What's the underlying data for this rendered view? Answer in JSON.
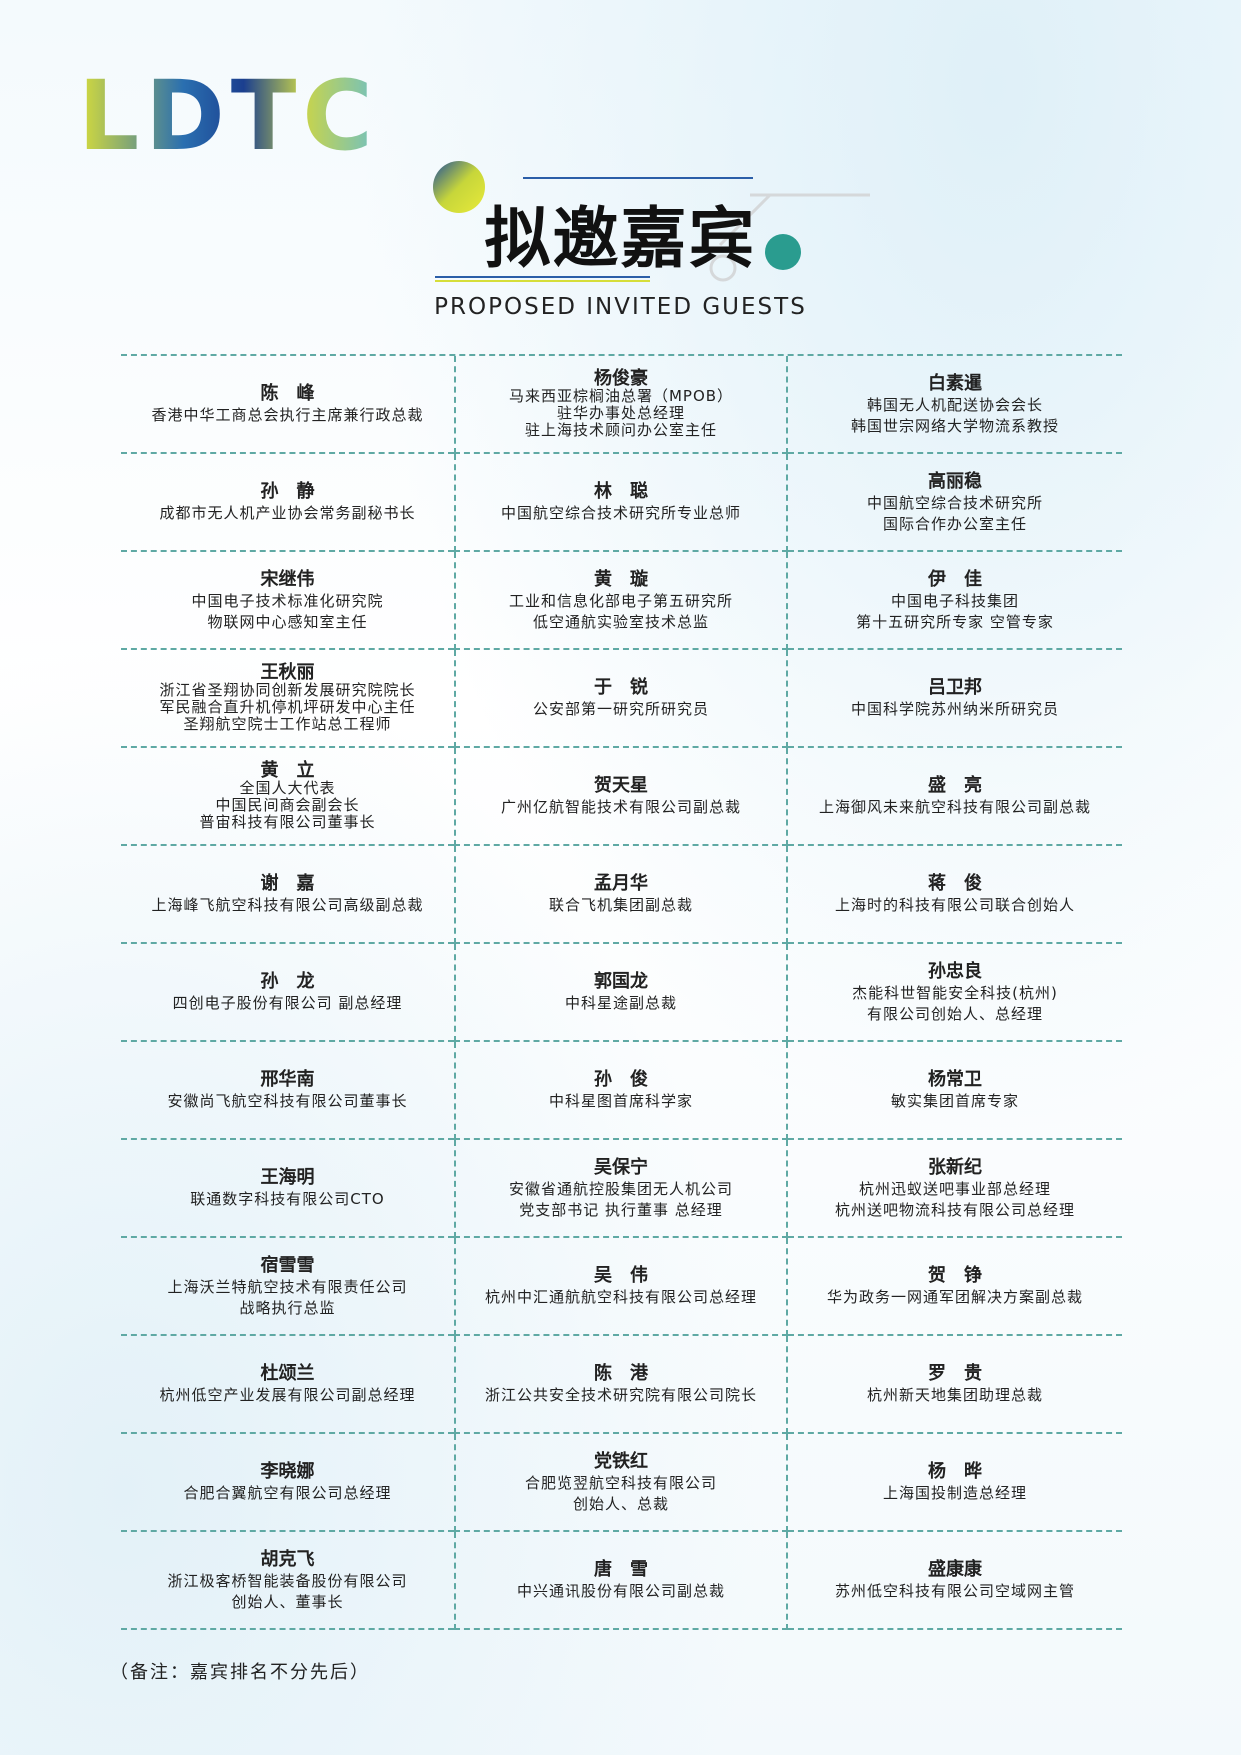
{
  "logo": "LDTC",
  "title": "拟邀嘉宾",
  "subtitle": "PROPOSED INVITED GUESTS",
  "guests": [
    [
      {
        "name": "陈　峰",
        "lines": [
          "香港中华工商总会执行主席兼行政总裁"
        ]
      },
      {
        "name": "杨俊豪",
        "lines": [
          "马来西亚棕榈油总署（MPOB）",
          "驻华办事处总经理",
          "驻上海技术顾问办公室主任"
        ]
      },
      {
        "name": "白素暹",
        "lines": [
          "韩国无人机配送协会会长",
          "韩国世宗网络大学物流系教授"
        ]
      }
    ],
    [
      {
        "name": "孙　静",
        "lines": [
          "成都市无人机产业协会常务副秘书长"
        ]
      },
      {
        "name": "林　聪",
        "lines": [
          "中国航空综合技术研究所专业总师"
        ]
      },
      {
        "name": "高丽稳",
        "lines": [
          "中国航空综合技术研究所",
          "国际合作办公室主任"
        ]
      }
    ],
    [
      {
        "name": "宋继伟",
        "lines": [
          "中国电子技术标准化研究院",
          "物联网中心感知室主任"
        ]
      },
      {
        "name": "黄　璇",
        "lines": [
          "工业和信息化部电子第五研究所",
          "低空通航实验室技术总监"
        ]
      },
      {
        "name": "伊　佳",
        "lines": [
          "中国电子科技集团",
          "第十五研究所专家 空管专家"
        ]
      }
    ],
    [
      {
        "name": "王秋丽",
        "lines": [
          "浙江省圣翔协同创新发展研究院院长",
          "军民融合直升机停机坪研发中心主任",
          "圣翔航空院士工作站总工程师"
        ]
      },
      {
        "name": "于　锐",
        "lines": [
          "公安部第一研究所研究员"
        ]
      },
      {
        "name": "吕卫邦",
        "lines": [
          "中国科学院苏州纳米所研究员"
        ]
      }
    ],
    [
      {
        "name": "黄　立",
        "lines": [
          "全国人大代表",
          "中国民间商会副会长",
          "普宙科技有限公司董事长"
        ]
      },
      {
        "name": "贺天星",
        "lines": [
          "广州亿航智能技术有限公司副总裁"
        ]
      },
      {
        "name": "盛　亮",
        "lines": [
          "上海御风未来航空科技有限公司副总裁"
        ]
      }
    ],
    [
      {
        "name": "谢　嘉",
        "lines": [
          "上海峰飞航空科技有限公司高级副总裁"
        ]
      },
      {
        "name": "孟月华",
        "lines": [
          "联合飞机集团副总裁"
        ]
      },
      {
        "name": "蒋　俊",
        "lines": [
          "上海时的科技有限公司联合创始人"
        ]
      }
    ],
    [
      {
        "name": "孙　龙",
        "lines": [
          "四创电子股份有限公司 副总经理"
        ]
      },
      {
        "name": "郭国龙",
        "lines": [
          "中科星途副总裁"
        ]
      },
      {
        "name": "孙忠良",
        "lines": [
          "杰能科世智能安全科技(杭州)",
          "有限公司创始人、总经理"
        ]
      }
    ],
    [
      {
        "name": "邢华南",
        "lines": [
          "安徽尚飞航空科技有限公司董事长"
        ]
      },
      {
        "name": "孙　俊",
        "lines": [
          "中科星图首席科学家"
        ]
      },
      {
        "name": "杨常卫",
        "lines": [
          "敏实集团首席专家"
        ]
      }
    ],
    [
      {
        "name": "王海明",
        "lines": [
          "联通数字科技有限公司CTO"
        ]
      },
      {
        "name": "吴保宁",
        "lines": [
          "安徽省通航控股集团无人机公司",
          "党支部书记 执行董事 总经理"
        ]
      },
      {
        "name": "张新纪",
        "lines": [
          "杭州迅蚁送吧事业部总经理",
          "杭州送吧物流科技有限公司总经理"
        ]
      }
    ],
    [
      {
        "name": "宿雪雪",
        "lines": [
          "上海沃兰特航空技术有限责任公司",
          "战略执行总监"
        ]
      },
      {
        "name": "吴　伟",
        "lines": [
          "杭州中汇通航航空科技有限公司总经理"
        ]
      },
      {
        "name": "贺　铮",
        "lines": [
          "华为政务一网通军团解决方案副总裁"
        ]
      }
    ],
    [
      {
        "name": "杜颂兰",
        "lines": [
          "杭州低空产业发展有限公司副总经理"
        ]
      },
      {
        "name": "陈　港",
        "lines": [
          "浙江公共安全技术研究院有限公司院长"
        ]
      },
      {
        "name": "罗　贵",
        "lines": [
          "杭州新天地集团助理总裁"
        ]
      }
    ],
    [
      {
        "name": "李晓娜",
        "lines": [
          "合肥合翼航空有限公司总经理"
        ]
      },
      {
        "name": "党铁红",
        "lines": [
          "合肥览翌航空科技有限公司",
          "创始人、总裁"
        ]
      },
      {
        "name": "杨　晔",
        "lines": [
          "上海国投制造总经理"
        ]
      }
    ],
    [
      {
        "name": "胡克飞",
        "lines": [
          "浙江极客桥智能装备股份有限公司",
          "创始人、董事长"
        ]
      },
      {
        "name": "唐　雪",
        "lines": [
          "中兴通讯股份有限公司副总裁"
        ]
      },
      {
        "name": "盛康康",
        "lines": [
          "苏州低空科技有限公司空域网主管"
        ]
      }
    ]
  ],
  "note": "（备注：嘉宾排名不分先后）"
}
